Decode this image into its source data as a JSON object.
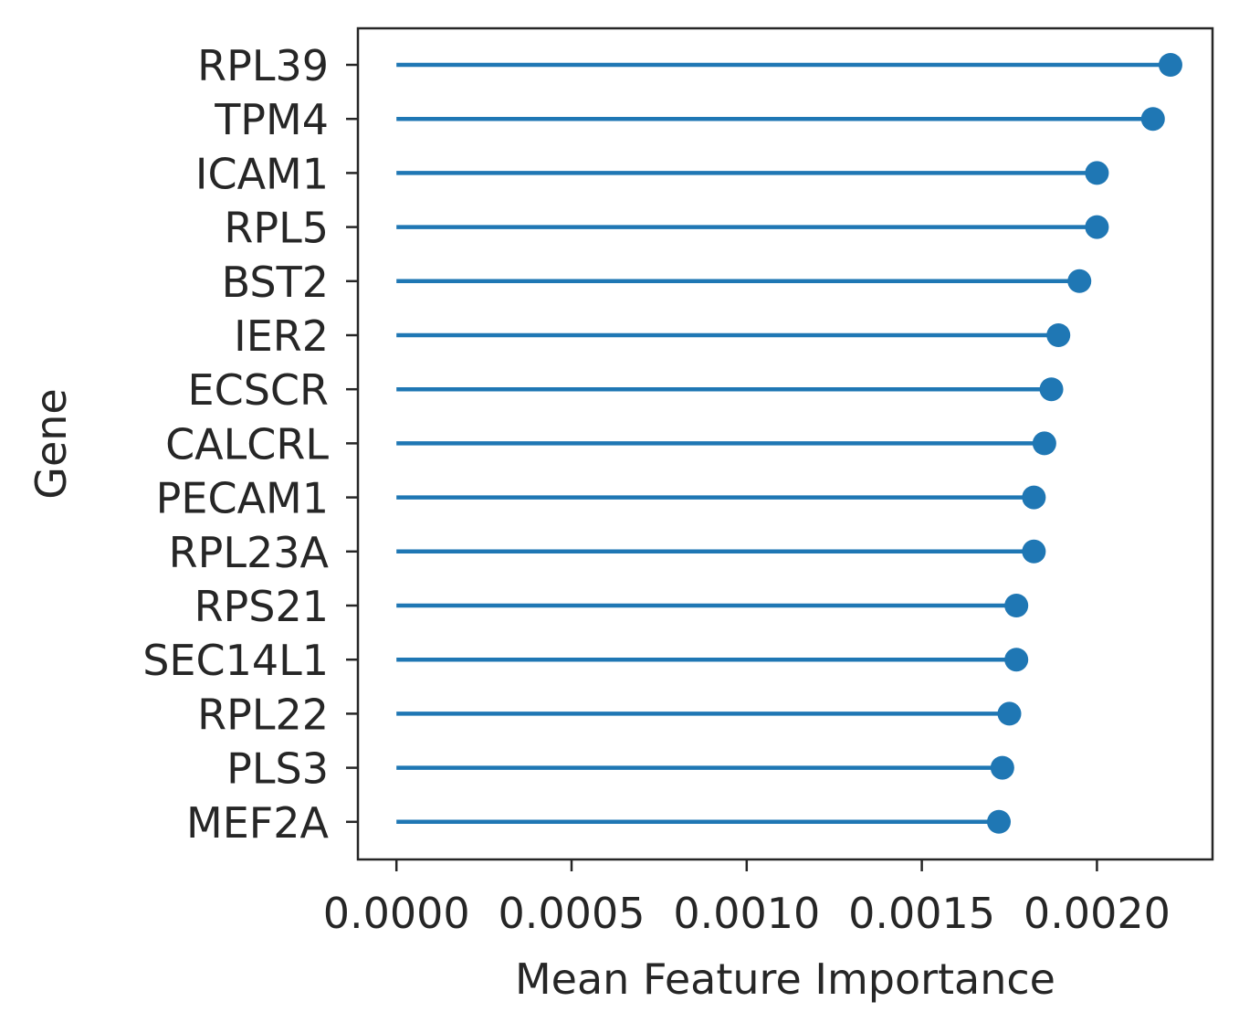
{
  "chart_data": {
    "type": "lollipop",
    "orientation": "horizontal",
    "xlabel": "Mean Feature Importance",
    "ylabel": "Gene",
    "xlim": [
      -0.00011,
      0.00233
    ],
    "xticks": [
      0.0,
      0.0005,
      0.001,
      0.0015,
      0.002
    ],
    "xtick_labels": [
      "0.0000",
      "0.0005",
      "0.0010",
      "0.0015",
      "0.0020"
    ],
    "color": "#1f77b4",
    "grid": false,
    "categories": [
      "RPL39",
      "TPM4",
      "ICAM1",
      "RPL5",
      "BST2",
      "IER2",
      "ECSCR",
      "CALCRL",
      "PECAM1",
      "RPL23A",
      "RPS21",
      "SEC14L1",
      "RPL22",
      "PLS3",
      "MEF2A"
    ],
    "values": [
      0.00221,
      0.00216,
      0.002,
      0.002,
      0.00195,
      0.00189,
      0.00187,
      0.00185,
      0.00182,
      0.00182,
      0.00177,
      0.00177,
      0.00175,
      0.00173,
      0.00172
    ]
  }
}
